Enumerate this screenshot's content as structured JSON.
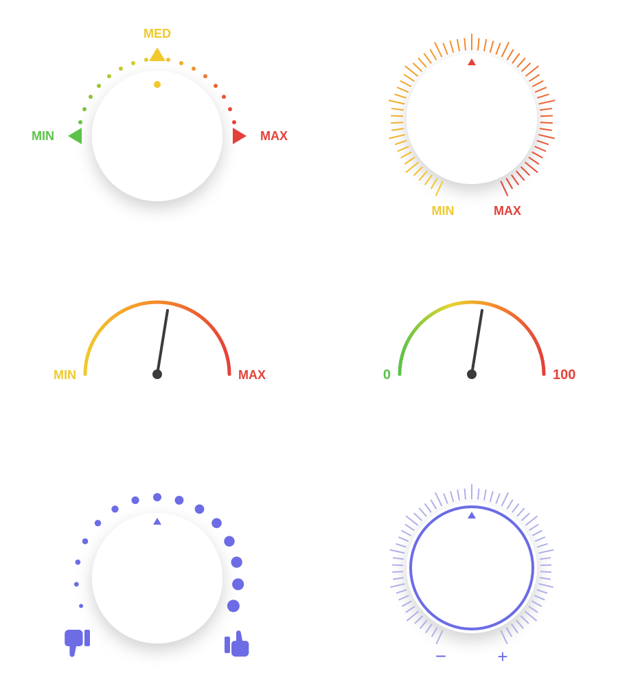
{
  "background": "#ffffff",
  "dial1": {
    "type": "knob-min-med-max",
    "knob_radius": 95,
    "knob_color": "#ffffff",
    "knob_shadow": "0 10px 30px rgba(0,0,0,0.15)",
    "labels": {
      "min": "MIN",
      "med": "MED",
      "max": "MAX"
    },
    "label_colors": {
      "min": "#5bc24a",
      "med": "#f0c92e",
      "max": "#e3413a"
    },
    "dot_colors_start": "#5bc24a",
    "dot_colors_mid": "#f0c92e",
    "dot_colors_end": "#e3413a",
    "indicator_dot_color": "#f0c92e",
    "font_size": 18
  },
  "dial2": {
    "type": "knob-ticks-gradient",
    "knob_radius": 95,
    "knob_color": "#ffffff",
    "labels": {
      "min": "MIN",
      "max": "MAX"
    },
    "label_colors": {
      "min": "#f0c92e",
      "max": "#e3413a"
    },
    "tick_gradient": [
      "#f0c92e",
      "#f58a2a",
      "#e3413a"
    ],
    "indicator_color": "#e3413a",
    "font_size": 18
  },
  "dial3": {
    "type": "gauge-arc",
    "labels": {
      "min": "MIN",
      "max": "MAX"
    },
    "label_colors": {
      "min": "#f0c92e",
      "max": "#e3413a"
    },
    "arc_gradient": [
      "#f0c92e",
      "#f58a2a",
      "#e3413a"
    ],
    "needle_color": "#3b3b3b",
    "needle_angle": 80,
    "font_size": 18
  },
  "dial4": {
    "type": "gauge-arc-0-100",
    "labels": {
      "min": "0",
      "max": "100"
    },
    "label_colors": {
      "min": "#5bc24a",
      "max": "#e3413a"
    },
    "arc_gradient": [
      "#5bc24a",
      "#f0c92e",
      "#f58a2a",
      "#e3413a"
    ],
    "needle_color": "#3b3b3b",
    "needle_angle": 80,
    "font_size": 20
  },
  "dial5": {
    "type": "knob-dots-rating",
    "knob_radius": 95,
    "knob_color": "#ffffff",
    "dot_color": "#6c6ce5",
    "icon_color": "#6c6ce5",
    "indicator_color": "#6c6ce5",
    "icons": {
      "left": "thumbs-down",
      "right": "thumbs-up"
    }
  },
  "dial6": {
    "type": "knob-ticks-plus-minus",
    "knob_radius": 95,
    "knob_color": "#ffffff",
    "ring_color": "#6c6ce5",
    "tick_color": "#b0b0e8",
    "indicator_color": "#6c6ce5",
    "labels": {
      "minus": "−",
      "plus": "+"
    },
    "label_color": "#6c6ce5",
    "font_size": 26
  }
}
